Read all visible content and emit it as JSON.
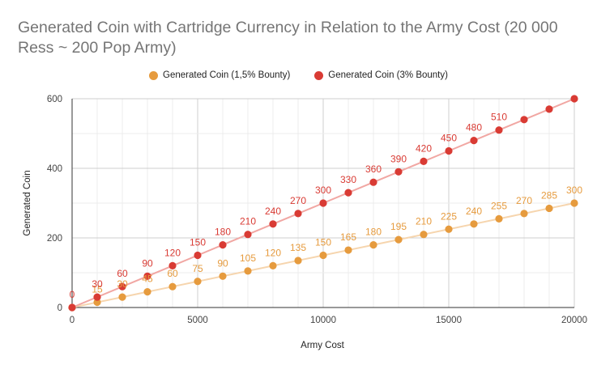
{
  "chart_data": {
    "type": "line",
    "title": "Generated Coin with Cartridge Currency in Relation to the Army Cost (20 000 Ress ~ 200 Pop Army)",
    "xlabel": "Army Cost",
    "ylabel": "Generated Coin",
    "xlim": [
      0,
      20000
    ],
    "ylim": [
      0,
      600
    ],
    "x_ticks": [
      0,
      5000,
      10000,
      15000,
      20000
    ],
    "y_ticks": [
      0,
      200,
      400,
      600
    ],
    "grid": true,
    "legend_position": "top",
    "x": [
      0,
      1000,
      2000,
      3000,
      4000,
      5000,
      6000,
      7000,
      8000,
      9000,
      10000,
      11000,
      12000,
      13000,
      14000,
      15000,
      16000,
      17000,
      18000,
      19000,
      20000
    ],
    "series": [
      {
        "name": "Generated Coin (1,5% Bounty)",
        "color": "#e69b3e",
        "line_color": "#f6d5ae",
        "values": [
          0,
          15,
          30,
          45,
          60,
          75,
          90,
          105,
          120,
          135,
          150,
          165,
          180,
          195,
          210,
          225,
          240,
          255,
          270,
          285,
          300
        ],
        "data_labels": [
          "",
          "15",
          "30",
          "45",
          "60",
          "75",
          "90",
          "105",
          "120",
          "135",
          "150",
          "165",
          "180",
          "195",
          "210",
          "225",
          "240",
          "255",
          "270",
          "285",
          "300"
        ]
      },
      {
        "name": "Generated Coin (3% Bounty)",
        "color": "#d93b34",
        "line_color": "#f1a7a3",
        "values": [
          0,
          30,
          60,
          90,
          120,
          150,
          180,
          210,
          240,
          270,
          300,
          330,
          360,
          390,
          420,
          450,
          480,
          510,
          540,
          570,
          600
        ],
        "data_labels": [
          "0",
          "30",
          "60",
          "90",
          "120",
          "150",
          "180",
          "210",
          "240",
          "270",
          "300",
          "330",
          "360",
          "390",
          "420",
          "450",
          "480",
          "510",
          "",
          "",
          ""
        ]
      }
    ]
  }
}
